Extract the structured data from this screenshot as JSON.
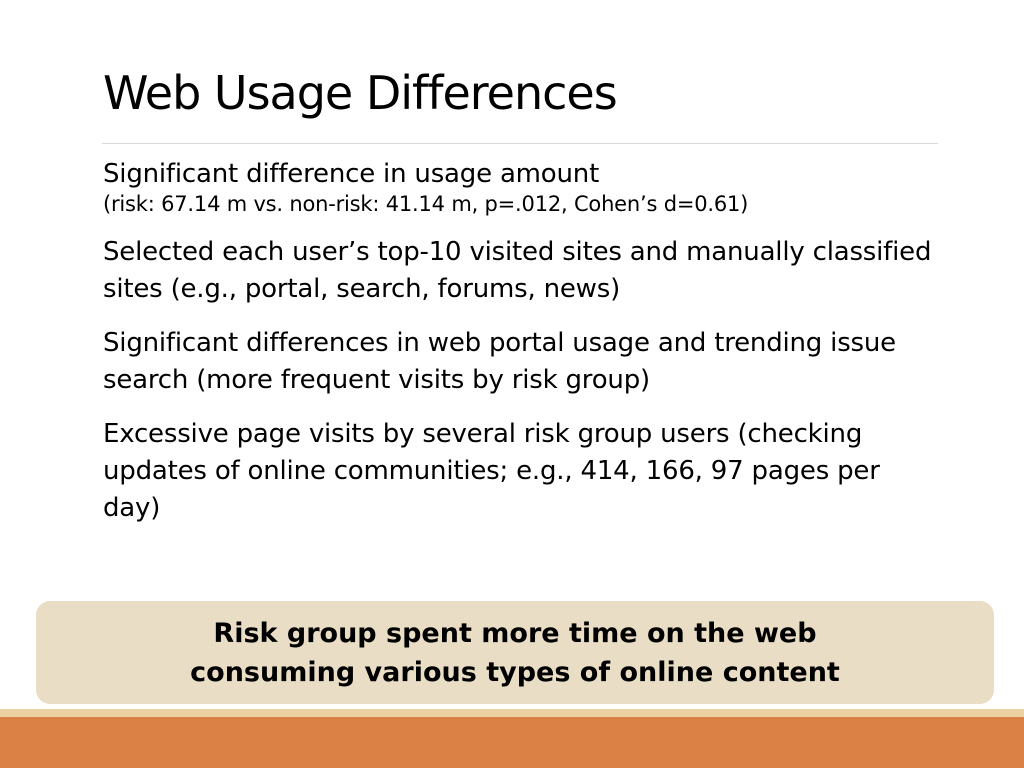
{
  "slide": {
    "title": "Web Usage Differences",
    "bullets": [
      {
        "text": "Significant difference in usage amount",
        "sub": "(risk: 67.14 m vs. non-risk: 41.14 m, p=.012, Cohen’s d=0.61)"
      },
      {
        "text": "Selected each user’s top-10 visited sites and manually classified sites (e.g., portal, search, forums, news)"
      },
      {
        "text": "Significant differences in web portal usage and trending issue search (more frequent visits by risk group)"
      },
      {
        "text": "Excessive page visits by several risk group users (checking updates of online communities; e.g., 414, 166, 97 pages per day)"
      }
    ],
    "callout": {
      "line1": "Risk group spent more time on the web",
      "line2": "consuming various types of online content"
    },
    "colors": {
      "callout_bg": "#e9ddc5",
      "stripe": "#ecd2a2",
      "footer": "#dc8146"
    }
  }
}
